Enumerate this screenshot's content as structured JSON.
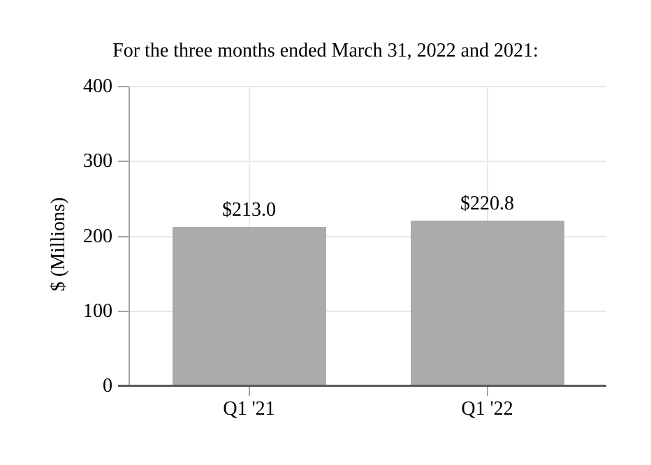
{
  "chart_data": {
    "type": "bar",
    "title": "For the three months ended March 31, 2022 and 2021:",
    "categories": [
      "Q1 '21",
      "Q1 '22"
    ],
    "values": [
      213.0,
      220.8
    ],
    "data_labels": [
      "$213.0",
      "$220.8"
    ],
    "xlabel": "",
    "ylabel": "$ (Millions)",
    "ylim": [
      0,
      400
    ],
    "yticks": [
      "0",
      "100",
      "200",
      "300",
      "400"
    ],
    "grid": "horizontal at each 100 and vertical at category centers",
    "legend": "none",
    "colors": {
      "bar": "#ABABAB",
      "gridline": "#E9E9E9",
      "axis_line": "#A3A3A3",
      "baseline": "#595959",
      "text": "#000000",
      "background": "#FFFFFF"
    }
  }
}
